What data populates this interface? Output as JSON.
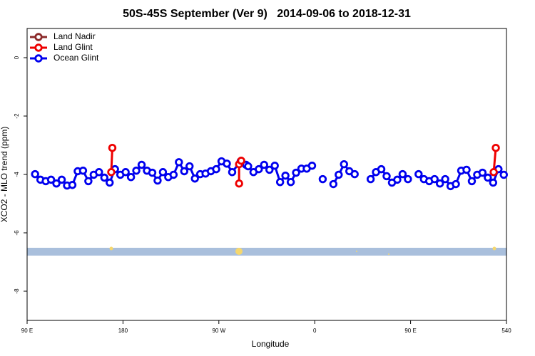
{
  "chart_data": {
    "type": "line",
    "title": "50S-45S September (Ver 9)   2014-09-06 to 2018-12-31",
    "x_label": "Longitude",
    "y_label": "XCO2 - MLO trend (ppm)",
    "xlim": [
      90,
      540
    ],
    "ylim": [
      -9,
      1
    ],
    "xticks": [
      {
        "value": 90,
        "label": "90 E"
      },
      180,
      {
        "value": 270,
        "label": "90 W"
      },
      {
        "value": 360,
        "label": "0"
      },
      {
        "value": 450,
        "label": "90 E"
      },
      540
    ],
    "yticks": [
      0,
      -2,
      -4,
      -6,
      -8
    ],
    "legend": "top-left",
    "series": [
      {
        "name": "Land Nadir",
        "color": "#8b2a2a",
        "x": [],
        "values": []
      },
      {
        "name": "Land Glint",
        "color": "#ee0000",
        "x": [
          169,
          170,
          null,
          289,
          289,
          291,
          null,
          528,
          530
        ],
        "values": [
          -3.92,
          -3.09,
          null,
          -4.31,
          -3.65,
          -3.53,
          null,
          -3.92,
          -3.09
        ]
      },
      {
        "name": "Ocean Glint",
        "color": "#0000ee",
        "x": [
          97.5,
          102.5,
          107.5,
          112.5,
          117.5,
          122.5,
          127.5,
          132.5,
          137.5,
          142.5,
          147.5,
          152.5,
          157.5,
          162.5,
          167.5,
          172.5,
          177.5,
          182.5,
          187.5,
          192.5,
          197.5,
          202.5,
          207.5,
          212.5,
          217.5,
          222.5,
          227.5,
          232.5,
          237.5,
          242.5,
          247.5,
          252.5,
          257.5,
          262.5,
          267.5,
          272.5,
          277.5,
          282.5,
          290.5,
          295.5,
          297.5,
          302.5,
          307.5,
          312.5,
          317.5,
          322.5,
          327.5,
          332.5,
          337.5,
          342.5,
          347.5,
          352.5,
          357.5,
          null,
          367.5,
          null,
          377.5,
          382.5,
          387.5,
          392.5,
          397.5,
          null,
          412.5,
          417.5,
          422.5,
          427.5,
          432.5,
          437.5,
          442.5,
          447.5,
          null,
          457.5,
          462.5,
          467.5,
          472.5,
          477.5,
          482.5,
          487.5,
          492.5,
          497.5,
          502.5,
          507.5,
          512.5,
          517.5,
          522.5,
          527.5,
          532.5,
          537.5
        ],
        "values": [
          -3.99,
          -4.18,
          -4.23,
          -4.18,
          -4.31,
          -4.18,
          -4.38,
          -4.36,
          -3.89,
          -3.87,
          -4.23,
          -4.01,
          -3.92,
          -4.11,
          -4.28,
          -3.82,
          -4.01,
          -3.92,
          -4.09,
          -3.87,
          -3.67,
          -3.87,
          -3.94,
          -4.21,
          -3.92,
          -4.09,
          -4.01,
          -3.58,
          -3.89,
          -3.72,
          -4.14,
          -3.99,
          -3.97,
          -3.89,
          -3.82,
          -3.55,
          -3.63,
          -3.92,
          -3.55,
          -3.67,
          -3.72,
          -3.92,
          -3.82,
          -3.67,
          -3.84,
          -3.7,
          -4.26,
          -4.04,
          -4.26,
          -3.94,
          -3.8,
          -3.8,
          -3.7,
          null,
          -4.16,
          null,
          -4.33,
          -4.01,
          -3.65,
          -3.89,
          -3.99,
          null,
          -4.16,
          -3.92,
          -3.82,
          -4.06,
          -4.28,
          -4.18,
          -3.99,
          -4.16,
          null,
          -3.99,
          -4.16,
          -4.23,
          -4.16,
          -4.31,
          -4.16,
          -4.4,
          -4.33,
          -3.87,
          -3.84,
          -4.23,
          -4.01,
          -3.94,
          -4.11,
          -4.28,
          -3.82,
          -4.01
        ]
      }
    ]
  }
}
